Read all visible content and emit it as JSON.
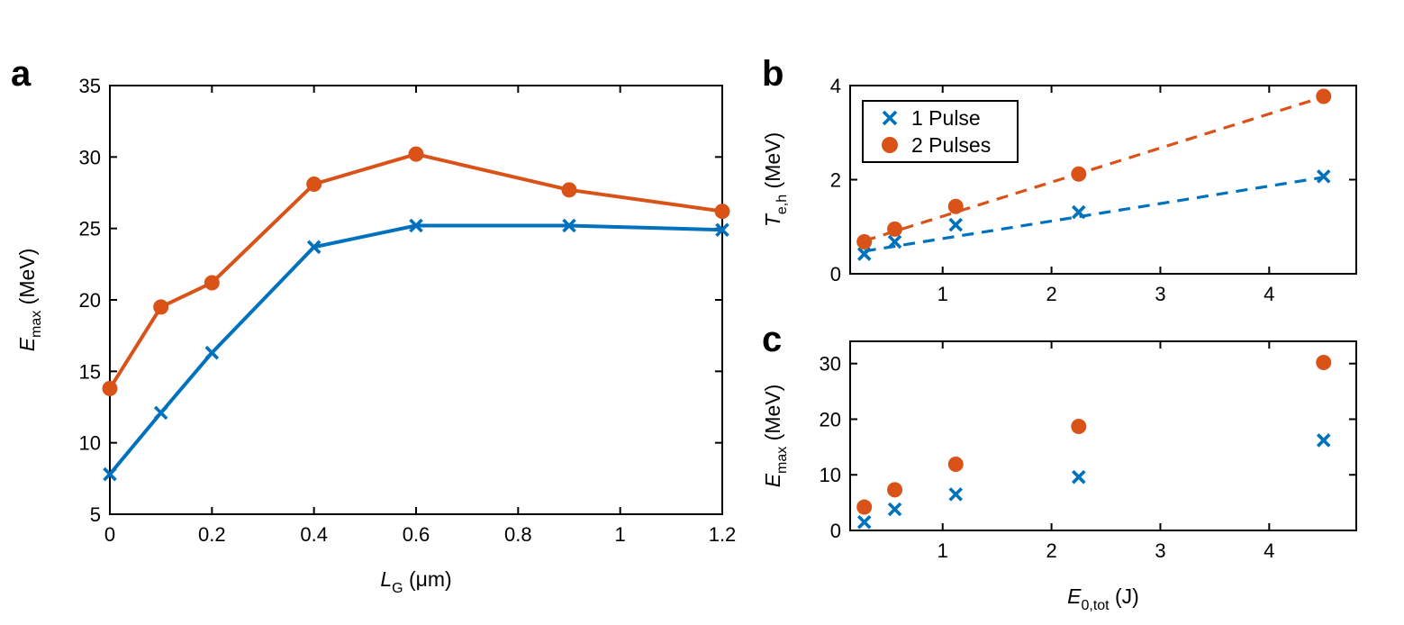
{
  "colors": {
    "blue": "#0072BD",
    "orange": "#D95319"
  },
  "legend": {
    "item1": "1 Pulse",
    "item2": "2 Pulses"
  },
  "chart_data": [
    {
      "panel": "a",
      "type": "line",
      "xlabel": {
        "main": "L",
        "sub": "G",
        "unit": " (μm)"
      },
      "ylabel": {
        "main": "E",
        "sub": "max",
        "unit": " (MeV)"
      },
      "xlim": [
        0,
        1.2
      ],
      "ylim": [
        5,
        35
      ],
      "xticks": [
        0,
        0.2,
        0.4,
        0.6,
        0.8,
        1,
        1.2
      ],
      "yticks": [
        5,
        10,
        15,
        20,
        25,
        30,
        35
      ],
      "x": [
        0,
        0.1,
        0.2,
        0.4,
        0.6,
        0.9,
        1.2
      ],
      "series": [
        {
          "name": "1 Pulse",
          "marker": "x",
          "values": [
            7.8,
            12.1,
            16.3,
            23.7,
            25.2,
            25.2,
            24.9
          ]
        },
        {
          "name": "2 Pulses",
          "marker": "o",
          "values": [
            13.8,
            19.5,
            21.2,
            28.1,
            30.2,
            27.7,
            26.2
          ]
        }
      ]
    },
    {
      "panel": "b",
      "type": "scatter",
      "xlabel": "",
      "ylabel": {
        "main": "T",
        "sub": "e,h",
        "unit": " (MeV)"
      },
      "xlim": [
        0.15,
        4.8
      ],
      "ylim": [
        0,
        4
      ],
      "xticks": [
        1,
        2,
        3,
        4
      ],
      "yticks": [
        0,
        2,
        4
      ],
      "x": [
        0.28,
        0.56,
        1.12,
        2.25,
        4.5
      ],
      "series": [
        {
          "name": "1 Pulse",
          "marker": "x",
          "values": [
            0.42,
            0.68,
            1.04,
            1.31,
            2.07
          ],
          "fit": [
            [
              0.28,
              0.48
            ],
            [
              4.5,
              2.05
            ]
          ]
        },
        {
          "name": "2 Pulses",
          "marker": "o",
          "values": [
            0.68,
            0.95,
            1.43,
            2.12,
            3.77
          ],
          "fit": [
            [
              0.28,
              0.7
            ],
            [
              4.5,
              3.76
            ]
          ]
        }
      ]
    },
    {
      "panel": "c",
      "type": "scatter",
      "xlabel": {
        "main": "E",
        "sub": "0,tot",
        "unit": " (J)"
      },
      "ylabel": {
        "main": "E",
        "sub": "max",
        "unit": " (MeV)"
      },
      "xlim": [
        0.15,
        4.8
      ],
      "ylim": [
        0,
        34
      ],
      "xticks": [
        1,
        2,
        3,
        4
      ],
      "yticks": [
        0,
        10,
        20,
        30
      ],
      "x": [
        0.28,
        0.56,
        1.12,
        2.25,
        4.5
      ],
      "series": [
        {
          "name": "1 Pulse",
          "marker": "x",
          "values": [
            1.5,
            3.8,
            6.5,
            9.6,
            16.2
          ]
        },
        {
          "name": "2 Pulses",
          "marker": "o",
          "values": [
            4.2,
            7.3,
            11.9,
            18.7,
            30.2
          ]
        }
      ]
    }
  ]
}
